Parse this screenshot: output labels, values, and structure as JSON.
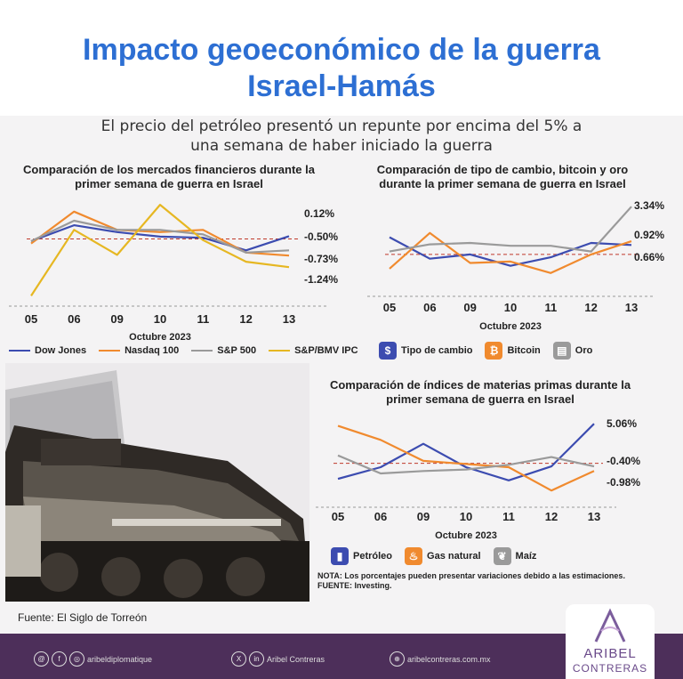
{
  "title": "Impacto geoeconómico de la guerra Israel-Hamás",
  "subtitle": "El precio del petróleo presentó un repunte por encima del 5% a una semana de haber iniciado la guerra",
  "chart_data": [
    {
      "type": "line",
      "title": "Comparación de los mercados financieros durante la primer semana de guerra en Israel",
      "xlabel": "Octubre 2023",
      "categories": [
        "05",
        "06",
        "09",
        "10",
        "11",
        "12",
        "13"
      ],
      "series": [
        {
          "name": "Dow Jones",
          "color": "#3c4cb0",
          "values": [
            -0.1,
            0.6,
            0.3,
            0.1,
            0.05,
            -0.5,
            0.12
          ]
        },
        {
          "name": "Nasdaq 100",
          "color": "#f08a2e",
          "values": [
            -0.2,
            1.2,
            0.4,
            0.3,
            0.4,
            -0.6,
            -0.73
          ]
        },
        {
          "name": "S&P 500",
          "color": "#9a9a9a",
          "values": [
            -0.1,
            0.8,
            0.4,
            0.4,
            0.2,
            -0.6,
            -0.5
          ]
        },
        {
          "name": "S&P/BMV IPC",
          "color": "#e6b722",
          "values": [
            -2.5,
            0.4,
            -0.7,
            1.5,
            -0.05,
            -1.0,
            -1.24
          ]
        }
      ],
      "end_labels": [
        "0.12%",
        "-0.50%",
        "-0.73%",
        "-1.24%"
      ],
      "reference_value": 0,
      "ylim": [
        -2.6,
        1.7
      ]
    },
    {
      "type": "line",
      "title": "Comparación de tipo de cambio, bitcoin y oro durante la primer semana de guerra en Israel",
      "xlabel": "Octubre 2023",
      "categories": [
        "05",
        "06",
        "09",
        "10",
        "11",
        "12",
        "13"
      ],
      "series": [
        {
          "name": "Tipo de cambio",
          "color": "#3c4cb0",
          "icon": "$",
          "values": [
            1.2,
            -0.3,
            0.0,
            -0.8,
            -0.2,
            0.8,
            0.66
          ]
        },
        {
          "name": "Bitcoin",
          "color": "#f08a2e",
          "icon": "₿",
          "values": [
            -1.0,
            1.5,
            -0.6,
            -0.5,
            -1.3,
            0.0,
            0.92
          ]
        },
        {
          "name": "Oro",
          "color": "#9a9a9a",
          "icon": "▤",
          "values": [
            0.2,
            0.7,
            0.8,
            0.6,
            0.6,
            0.2,
            3.34
          ]
        }
      ],
      "end_labels": [
        "3.34%",
        "0.92%",
        "0.66%"
      ],
      "reference_value": 0,
      "ylim": [
        -2.0,
        3.6
      ]
    },
    {
      "type": "line",
      "title": "Comparación de índices de materias primas durante la primer semana de guerra en Israel",
      "xlabel": "Octubre 2023",
      "categories": [
        "05",
        "06",
        "09",
        "10",
        "11",
        "12",
        "13"
      ],
      "series": [
        {
          "name": "Petróleo",
          "color": "#3c4cb0",
          "icon": "▮",
          "values": [
            -2.0,
            -0.5,
            2.5,
            -0.5,
            -2.2,
            -0.4,
            5.06
          ]
        },
        {
          "name": "Gas natural",
          "color": "#f08a2e",
          "icon": "♨",
          "values": [
            4.8,
            3.0,
            0.3,
            -0.1,
            -0.5,
            -3.5,
            -0.98
          ]
        },
        {
          "name": "Maíz",
          "color": "#9a9a9a",
          "icon": "❦",
          "values": [
            1.0,
            -1.3,
            -1.0,
            -0.8,
            -0.2,
            0.8,
            -0.4
          ]
        }
      ],
      "end_labels": [
        "5.06%",
        "-0.40%",
        "-0.98%"
      ],
      "reference_value": 0,
      "ylim": [
        -4.5,
        6.0
      ]
    }
  ],
  "note_line1": "NOTA: Los porcentajes pueden presentar variaciones debido a las estimaciones.",
  "note_line2": "FUENTE: Investing.",
  "footer_source": "Fuente: El Siglo de Torreón",
  "social": {
    "handle": "aribeldiplomatique",
    "name": "Aribel Contreras",
    "website": "aribelcontreras.com.mx"
  },
  "logo": {
    "line1": "ARIBEL",
    "line2": "CONTRERAS"
  },
  "colors": {
    "title": "#2d6fd3",
    "footer_bar": "#4d2f5a",
    "reference_line": "#c0392b"
  }
}
